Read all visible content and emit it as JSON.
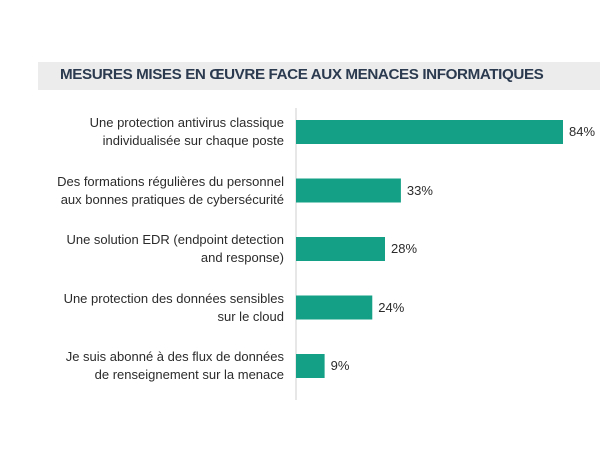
{
  "title": "MESURES MISES EN ŒUVRE FACE AUX MENACES INFORMATIQUES",
  "colors": {
    "bar": "#14a086",
    "title_bg": "#ececec",
    "title_text": "#2b3a4f",
    "axis": "#cfcfcf"
  },
  "chart_data": {
    "type": "bar",
    "orientation": "horizontal",
    "title": "MESURES MISES EN ŒUVRE FACE AUX MENACES INFORMATIQUES",
    "categories": [
      [
        "Une protection antivirus classique",
        "individualisée sur chaque poste"
      ],
      [
        "Des formations régulières du personnel",
        "aux bonnes pratiques de cybersécurité"
      ],
      [
        "Une solution EDR (endpoint detection",
        "and response)"
      ],
      [
        "Une protection des données sensibles",
        "sur le cloud"
      ],
      [
        "Je suis abonné à des flux de données",
        "de renseignement sur la menace"
      ]
    ],
    "values": [
      84,
      33,
      28,
      24,
      9
    ],
    "value_labels": [
      "84%",
      "33%",
      "28%",
      "24%",
      "9%"
    ],
    "unit": "%",
    "xlim": [
      0,
      100
    ],
    "grid": false,
    "legend": "none"
  }
}
